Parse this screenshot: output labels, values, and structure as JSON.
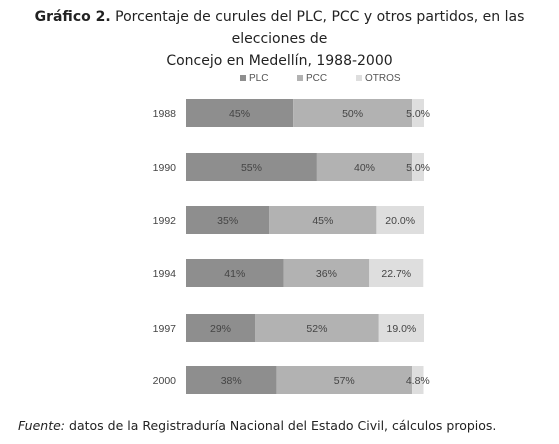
{
  "title": {
    "prefix": "Gráfico 2.",
    "line1": "Porcentaje de curules del PLC, PCC y otros partidos, en las elecciones de",
    "line2": "Concejo en Medellín, 1988-2000"
  },
  "chart_data": {
    "type": "bar",
    "orientation": "horizontal",
    "stacked": true,
    "categories": [
      "1988",
      "1990",
      "1992",
      "1994",
      "1997",
      "2000"
    ],
    "series": [
      {
        "name": "PLC",
        "values": [
          45,
          55,
          35,
          41,
          29,
          38
        ],
        "labels": [
          "45%",
          "55%",
          "35%",
          "41%",
          "29%",
          "38%"
        ],
        "color": "#8e8e8e"
      },
      {
        "name": "PCC",
        "values": [
          50,
          40,
          45,
          36,
          52,
          57
        ],
        "labels": [
          "50%",
          "40%",
          "45%",
          "36%",
          "52%",
          "57%"
        ],
        "color": "#b2b2b2"
      },
      {
        "name": "OTROS",
        "values": [
          5.0,
          5.0,
          20.0,
          22.7,
          19.0,
          4.8
        ],
        "labels": [
          "5.0%",
          "5.0%",
          "20.0%",
          "22.7%",
          "19.0%",
          "4.8%"
        ],
        "color": "#dedede"
      }
    ],
    "xlim": [
      0,
      100
    ],
    "grid": false,
    "legend": "top"
  },
  "source": {
    "label": "Fuente:",
    "text": "datos de la Registraduría Nacional del Estado Civil, cálculos propios."
  }
}
